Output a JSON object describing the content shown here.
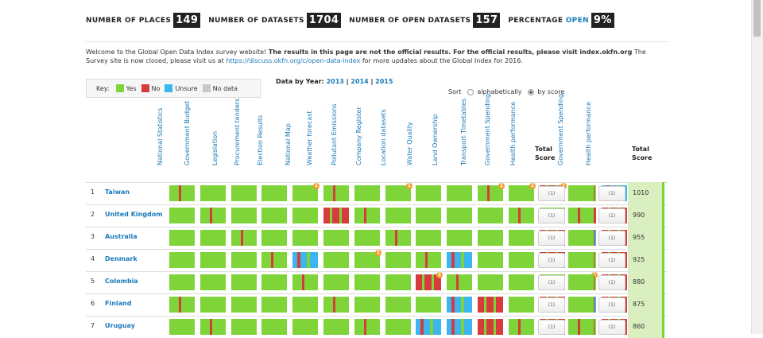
{
  "stats": [
    {
      "label": "Number of places",
      "value": "149"
    },
    {
      "label": "Number of datasets",
      "value": "1704"
    },
    {
      "label": "Number of open datasets",
      "value": "157"
    },
    {
      "label": "Percentage",
      "label_accent": "open",
      "value": "9%"
    }
  ],
  "welcome": {
    "part1": "Welcome to the Global Open Data Index survey website! ",
    "bold": "The results in this page are not the official results. For the official results, please visit index.okfn.org",
    "part2": " The Survey site is now closed, please visit us at ",
    "link": "https://discuss.okfn.org/c/open-data-index",
    "part3": " for more updates about the Global Index for 2016."
  },
  "key": {
    "label": "Key:",
    "items": [
      {
        "label": "Yes",
        "color": "#7fd43a"
      },
      {
        "label": "No",
        "color": "#d63c3c"
      },
      {
        "label": "Unsure",
        "color": "#3cb6ef"
      },
      {
        "label": "No data",
        "color": "#c8c8c8"
      }
    ]
  },
  "data_by_year": {
    "label": "Data by Year:",
    "years": [
      "2013",
      "2014",
      "2015"
    ],
    "sep": "|"
  },
  "sort": {
    "label": "Sort",
    "options": [
      "alphabetically",
      "by score"
    ],
    "selected": 1
  },
  "columns": [
    "National Statistics",
    "Government Budget",
    "Legislation",
    "Procurement tenders",
    "Election Results",
    "National Map",
    "Weather forecast",
    "Pollutant Emissions",
    "Company Register",
    "Location datasets",
    "Water Quality",
    "Land Ownership",
    "Transport Timetables",
    "Government Spending",
    "Health performance"
  ],
  "group_columns": [
    "Government Spending",
    "Health performance"
  ],
  "total_score_label": [
    "Total",
    "Score"
  ],
  "button_label": "(1)",
  "colors": {
    "yes": "#7fd43a",
    "no": "#d63c3c",
    "unsure": "#3cb6ef",
    "nodata": "#c8c8c8"
  },
  "badge_label": "1",
  "rows": [
    {
      "rank": "1",
      "country": "Taiwan",
      "score": "1010",
      "cells": [
        "y",
        "y",
        "y",
        "y",
        "y",
        "y",
        "y",
        "y",
        "y",
        "y",
        "y",
        "y",
        "n",
        "y",
        "u"
      ],
      "badges": [
        4,
        7,
        10,
        11,
        12
      ],
      "group": [
        "n",
        "y"
      ]
    },
    {
      "rank": "2",
      "country": "United Kingdom",
      "score": "990",
      "cells": [
        "y",
        "y",
        "y",
        "y",
        "y",
        "n",
        "y",
        "y",
        "y",
        "y",
        "y",
        "y",
        "y",
        "n",
        "n"
      ],
      "badges": [],
      "group": [
        "n",
        "y"
      ]
    },
    {
      "rank": "3",
      "country": "Australia",
      "score": "955",
      "cells": [
        "y",
        "y",
        "y",
        "y",
        "y",
        "y",
        "y",
        "y",
        "y",
        "y",
        "y",
        "y",
        "n",
        "u",
        "n"
      ],
      "badges": [],
      "group": [
        "n",
        "y"
      ]
    },
    {
      "rank": "4",
      "country": "Denmark",
      "score": "925",
      "cells": [
        "y",
        "y",
        "y",
        "y",
        "u",
        "y",
        "y",
        "y",
        "y",
        "u",
        "y",
        "y",
        "n",
        "y",
        "n"
      ],
      "badges": [
        6
      ],
      "group": [
        "n",
        "y"
      ]
    },
    {
      "rank": "5",
      "country": "Colombia",
      "score": "880",
      "cells": [
        "y",
        "y",
        "y",
        "y",
        "y",
        "y",
        "y",
        "y",
        "n",
        "y",
        "y",
        "y",
        "y",
        "y",
        "n"
      ],
      "badges": [
        8,
        13
      ],
      "group": [
        "n",
        "y"
      ]
    },
    {
      "rank": "6",
      "country": "Finland",
      "score": "875",
      "cells": [
        "y",
        "y",
        "y",
        "y",
        "y",
        "y",
        "y",
        "y",
        "y",
        "u",
        "n",
        "y",
        "n",
        "u",
        "n"
      ],
      "badges": [],
      "group": [
        "n",
        "y"
      ]
    },
    {
      "rank": "7",
      "country": "Uruguay",
      "score": "860",
      "cells": [
        "y",
        "y",
        "y",
        "y",
        "y",
        "y",
        "y",
        "y",
        "u",
        "u",
        "n",
        "y",
        "n",
        "y",
        "n"
      ],
      "badges": [],
      "group": [
        "n",
        "y"
      ]
    }
  ]
}
